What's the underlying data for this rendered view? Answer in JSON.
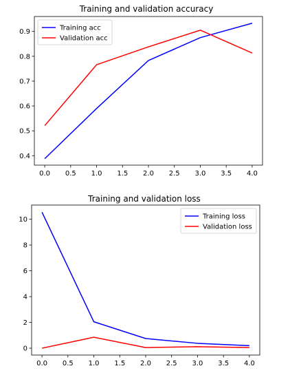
{
  "chart_data": [
    {
      "type": "line",
      "title": "Training and validation accuracy",
      "xlabel": "",
      "ylabel": "",
      "x": [
        0,
        1,
        2,
        3,
        4
      ],
      "xlim": [
        -0.2,
        4.2
      ],
      "ylim": [
        0.362,
        0.96
      ],
      "xticks": [
        0.0,
        0.5,
        1.0,
        1.5,
        2.0,
        2.5,
        3.0,
        3.5,
        4.0
      ],
      "yticks": [
        0.4,
        0.5,
        0.6,
        0.7,
        0.8,
        0.9
      ],
      "xtick_labels": [
        "0.0",
        "0.5",
        "1.0",
        "1.5",
        "2.0",
        "2.5",
        "3.0",
        "3.5",
        "4.0"
      ],
      "ytick_labels": [
        "0.4",
        "0.5",
        "0.6",
        "0.7",
        "0.8",
        "0.9"
      ],
      "grid": false,
      "legend_position": "upper-left",
      "series": [
        {
          "name": "Training acc",
          "color": "#0000ff",
          "values": [
            0.388,
            0.59,
            0.783,
            0.875,
            0.933
          ]
        },
        {
          "name": "Validation acc",
          "color": "#ff0000",
          "values": [
            0.521,
            0.766,
            0.838,
            0.905,
            0.813
          ]
        }
      ]
    },
    {
      "type": "line",
      "title": "Training and validation loss",
      "xlabel": "",
      "ylabel": "",
      "x": [
        0,
        1,
        2,
        3,
        4
      ],
      "xlim": [
        -0.2,
        4.2
      ],
      "ylim": [
        -0.53,
        11.1
      ],
      "xticks": [
        0.0,
        0.5,
        1.0,
        1.5,
        2.0,
        2.5,
        3.0,
        3.5,
        4.0
      ],
      "yticks": [
        0,
        2,
        4,
        6,
        8,
        10
      ],
      "xtick_labels": [
        "0.0",
        "0.5",
        "1.0",
        "1.5",
        "2.0",
        "2.5",
        "3.0",
        "3.5",
        "4.0"
      ],
      "ytick_labels": [
        "0",
        "2",
        "4",
        "6",
        "8",
        "10"
      ],
      "grid": false,
      "legend_position": "upper-right",
      "series": [
        {
          "name": "Training loss",
          "color": "#0000ff",
          "values": [
            10.55,
            2.05,
            0.75,
            0.38,
            0.2
          ]
        },
        {
          "name": "Validation loss",
          "color": "#ff0000",
          "values": [
            0.0,
            0.85,
            0.05,
            0.12,
            0.05
          ]
        }
      ]
    }
  ]
}
